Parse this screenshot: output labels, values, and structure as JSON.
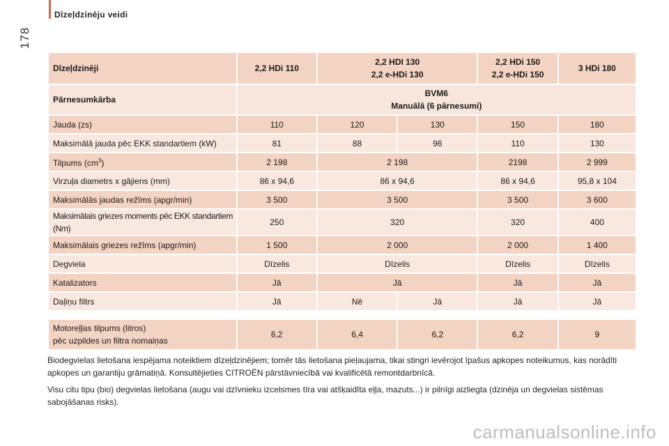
{
  "page": {
    "section_title": "Dīzeļdzinēju veidi",
    "page_number": "178"
  },
  "table": {
    "header": {
      "label": "Dīzeļdzinēji",
      "col1": "2,2 HDi 110",
      "col2_line1": "2,2 HDI 130",
      "col2_line2": "2,2 e-HDi 130",
      "col3_line1": "2,2 HDi 150",
      "col3_line2": "2,2 e-HDi 150",
      "col4": "3 HDi 180"
    },
    "gearbox": {
      "label": "Pārnesumkārba",
      "line1": "BVM6",
      "line2": "Manuālā (6 pārnesumi)"
    },
    "rows": {
      "power": {
        "label": "Jauda (zs)",
        "v1": "110",
        "v2": "120",
        "v3": "130",
        "v4": "150",
        "v5": "180"
      },
      "max_power": {
        "label": "Maksimālā jauda pēc EKK standartiem (kW)",
        "v1": "81",
        "v2": "88",
        "v3": "96",
        "v4": "110",
        "v5": "130"
      },
      "displacement": {
        "label": "Tilpums (cm",
        "sup": "3",
        "label_end": ")",
        "v1": "2 198",
        "v2": "2 198",
        "v3": "2198",
        "v4": "2 999"
      },
      "bore": {
        "label": "Virzuļa diametrs x gājiens (mm)",
        "v1": "86 x 94,6",
        "v2": "86 x 94,6",
        "v3": "86 x 94,6",
        "v4": "95,8 x 104"
      },
      "max_power_rpm": {
        "label": "Maksimālās jaudas režīms (apgr/min)",
        "v1": "3 500",
        "v2": "3 500",
        "v3": "3 500",
        "v4": "3 600"
      },
      "max_torque": {
        "label": "Maksimālais griezes moments pēc EKK standartiem (Nm)",
        "v1": "250",
        "v2": "320",
        "v3": "320",
        "v4": "400"
      },
      "max_torque_rpm": {
        "label": "Maksimālais griezes režīms (apgr/min)",
        "v1": "1 500",
        "v2": "2 000",
        "v3": "2 000",
        "v4": "1 400"
      },
      "fuel": {
        "label": "Degviela",
        "v1": "Dīzelis",
        "v2": "Dīzelis",
        "v3": "Dīzelis",
        "v4": "Dīzelis"
      },
      "catalyst": {
        "label": "Katalizators",
        "v1": "Jā",
        "v2": "Jā",
        "v3": "Jā",
        "v4": "Jā"
      },
      "particle_filter": {
        "label": "Daļiņu filtrs",
        "v1": "Jā",
        "v2": "Nē",
        "v3": "Jā",
        "v4": "Jā",
        "v5": "Jā"
      },
      "oil": {
        "label_line1": "Motoreļļas tilpums (litros)",
        "label_line2": "pēc uzpildes un filtra nomaiņas",
        "v1": "6,2",
        "v2": "6,4",
        "v3": "6,2",
        "v4": "6,2",
        "v5": "9"
      }
    }
  },
  "notes": {
    "p1": "Biodegvielas lietošana iespējama noteiktiem dīzeļdzinējiem; tomēr tās lietošana pieļaujama, tikai stingri ievērojot īpašus apkopes noteikumus, kas norādīti apkopes un garantiju grāmatiņā. Konsultējieties CITROËN pārstāvniecībā vai kvalificētā remontdarbnīcā.",
    "p2": "Visu citu tipu (bio) degvielas lietošana (augu vai dzīvnieku izcelsmes tīra vai atšķaidīta eļļa, mazuts...) ir pilnīgi aizliegta (dzinēja un degvielas sistēmas sabojāšanas risks)."
  },
  "watermark": "carmanualsonline.info"
}
